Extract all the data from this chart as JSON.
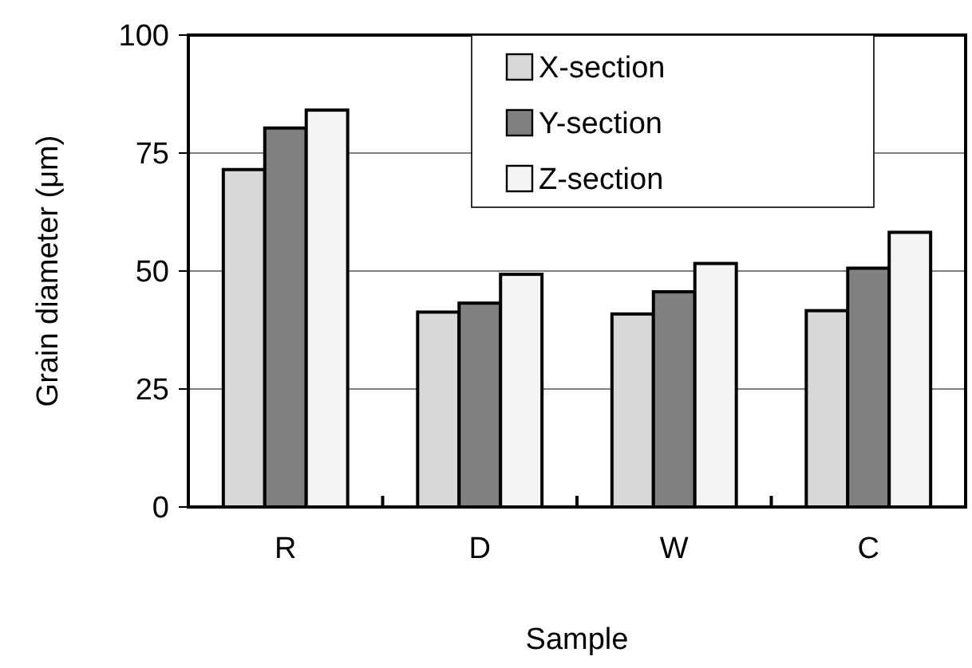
{
  "chart_data": {
    "type": "bar",
    "xlabel": "Sample",
    "ylabel": "Grain diameter (μm)",
    "categories": [
      "R",
      "D",
      "W",
      "C"
    ],
    "series": [
      {
        "name": "X-section",
        "color": "#d8d8d8",
        "values": [
          71.5,
          41.3,
          40.9,
          41.6
        ]
      },
      {
        "name": "Y-section",
        "color": "#808080",
        "values": [
          80.3,
          43.2,
          45.6,
          50.6
        ]
      },
      {
        "name": "Z-section",
        "color": "#f4f4f4",
        "values": [
          84.1,
          49.3,
          51.6,
          58.2
        ]
      }
    ],
    "ylim": [
      0,
      100
    ],
    "yticks": [
      0,
      25,
      50,
      75,
      100
    ],
    "grid": "y",
    "legend": "top"
  }
}
